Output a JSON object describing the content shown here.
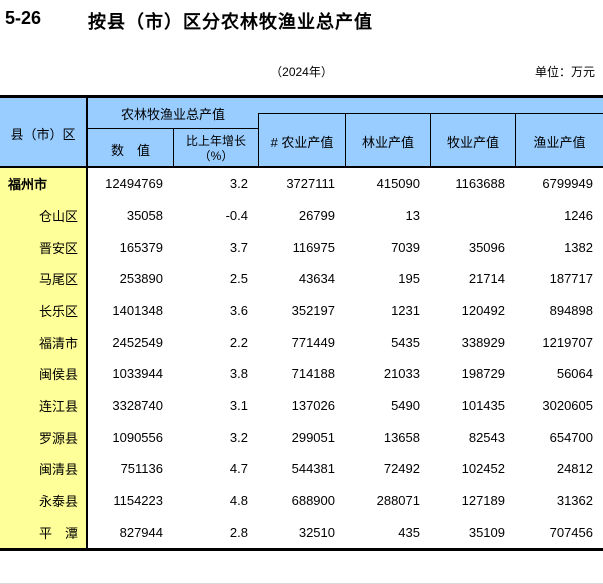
{
  "page": {
    "table_no": "5-26",
    "title": "按县（市）区分农林牧渔业总产值",
    "year_note": "（2024年）",
    "unit_note": "单位：万元"
  },
  "colors": {
    "header_bg": "#99CCFF",
    "region_col_bg": "#FFFF99",
    "border": "#000000"
  },
  "table": {
    "header": {
      "region": "县（市）区",
      "group": "农林牧渔业总产值",
      "sub_value": "数　值",
      "sub_growth_line1": "比上年增长",
      "sub_growth_line2": "（%）",
      "col_agriculture": "# 农业产值",
      "col_forestry": "林业产值",
      "col_husbandry": "牧业产值",
      "col_fishery": "渔业产值"
    },
    "rows": [
      {
        "region": "福州市",
        "emphasis": true,
        "value": "12494769",
        "growth": "3.2",
        "agriculture": "3727111",
        "forestry": "415090",
        "husbandry": "1163688",
        "fishery": "6799949"
      },
      {
        "region": "仓山区",
        "emphasis": false,
        "value": "35058",
        "growth": "-0.4",
        "agriculture": "26799",
        "forestry": "13",
        "husbandry": "",
        "fishery": "1246"
      },
      {
        "region": "晋安区",
        "emphasis": false,
        "value": "165379",
        "growth": "3.7",
        "agriculture": "116975",
        "forestry": "7039",
        "husbandry": "35096",
        "fishery": "1382"
      },
      {
        "region": "马尾区",
        "emphasis": false,
        "value": "253890",
        "growth": "2.5",
        "agriculture": "43634",
        "forestry": "195",
        "husbandry": "21714",
        "fishery": "187717"
      },
      {
        "region": "长乐区",
        "emphasis": false,
        "value": "1401348",
        "growth": "3.6",
        "agriculture": "352197",
        "forestry": "1231",
        "husbandry": "120492",
        "fishery": "894898"
      },
      {
        "region": "福清市",
        "emphasis": false,
        "value": "2452549",
        "growth": "2.2",
        "agriculture": "771449",
        "forestry": "5435",
        "husbandry": "338929",
        "fishery": "1219707"
      },
      {
        "region": "闽侯县",
        "emphasis": false,
        "value": "1033944",
        "growth": "3.8",
        "agriculture": "714188",
        "forestry": "21033",
        "husbandry": "198729",
        "fishery": "56064"
      },
      {
        "region": "连江县",
        "emphasis": false,
        "value": "3328740",
        "growth": "3.1",
        "agriculture": "137026",
        "forestry": "5490",
        "husbandry": "101435",
        "fishery": "3020605"
      },
      {
        "region": "罗源县",
        "emphasis": false,
        "value": "1090556",
        "growth": "3.2",
        "agriculture": "299051",
        "forestry": "13658",
        "husbandry": "82543",
        "fishery": "654700"
      },
      {
        "region": "闽清县",
        "emphasis": false,
        "value": "751136",
        "growth": "4.7",
        "agriculture": "544381",
        "forestry": "72492",
        "husbandry": "102452",
        "fishery": "24812"
      },
      {
        "region": "永泰县",
        "emphasis": false,
        "value": "1154223",
        "growth": "4.8",
        "agriculture": "688900",
        "forestry": "288071",
        "husbandry": "127189",
        "fishery": "31362"
      },
      {
        "region": "平　潭",
        "emphasis": false,
        "value": "827944",
        "growth": "2.8",
        "agriculture": "32510",
        "forestry": "435",
        "husbandry": "35109",
        "fishery": "707456"
      }
    ]
  }
}
